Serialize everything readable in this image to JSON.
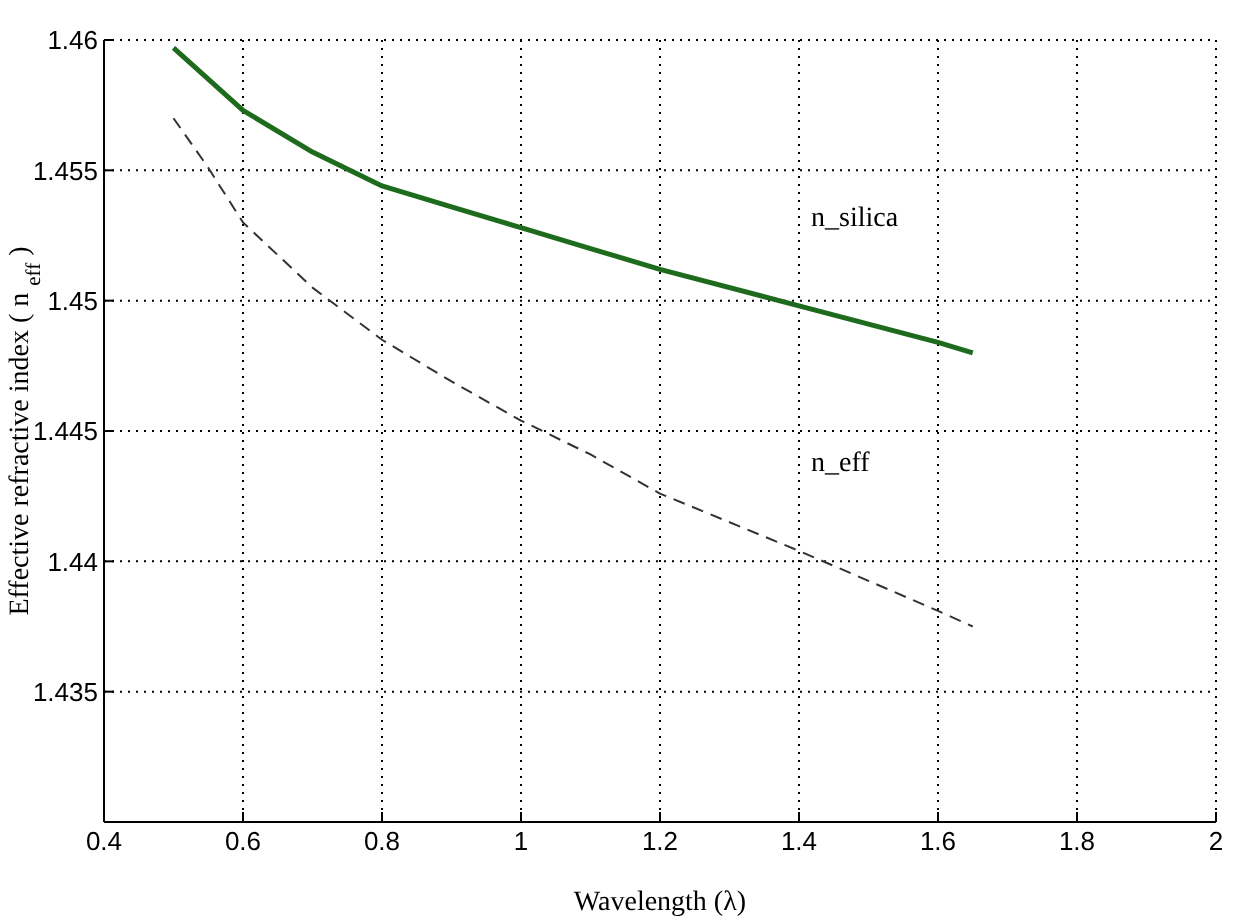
{
  "chart_data": {
    "type": "line",
    "xlabel": "Wavelength (λ)",
    "ylabel": "Effective refractive index ( n $_{eff}$ )",
    "xlim": [
      0.4,
      2
    ],
    "xticks": [
      0.4,
      0.6,
      0.8,
      1,
      1.2,
      1.4,
      1.6,
      1.8,
      2
    ],
    "ylim": [
      1.43,
      1.46
    ],
    "yticks": [
      1.435,
      1.44,
      1.445,
      1.45,
      1.455,
      1.46
    ],
    "grid": true,
    "legend": false,
    "series": [
      {
        "name": "n_silica",
        "color": "#1e6b1e",
        "line_style": "solid",
        "x": [
          0.5,
          0.6,
          0.7,
          0.8,
          0.9,
          1.0,
          1.1,
          1.2,
          1.4,
          1.6,
          1.65
        ],
        "values": [
          1.4597,
          1.4573,
          1.4557,
          1.4544,
          1.4536,
          1.4528,
          1.452,
          1.4512,
          1.4498,
          1.4484,
          1.448
        ]
      },
      {
        "name": "n_eff",
        "color": "#333333",
        "line_style": "dashed",
        "x": [
          0.5,
          0.55,
          0.6,
          0.7,
          0.8,
          0.9,
          1.0,
          1.1,
          1.2,
          1.4,
          1.6,
          1.65
        ],
        "values": [
          1.457,
          1.4551,
          1.453,
          1.4505,
          1.4485,
          1.4469,
          1.4454,
          1.4441,
          1.4426,
          1.4404,
          1.4381,
          1.4375
        ]
      }
    ]
  }
}
